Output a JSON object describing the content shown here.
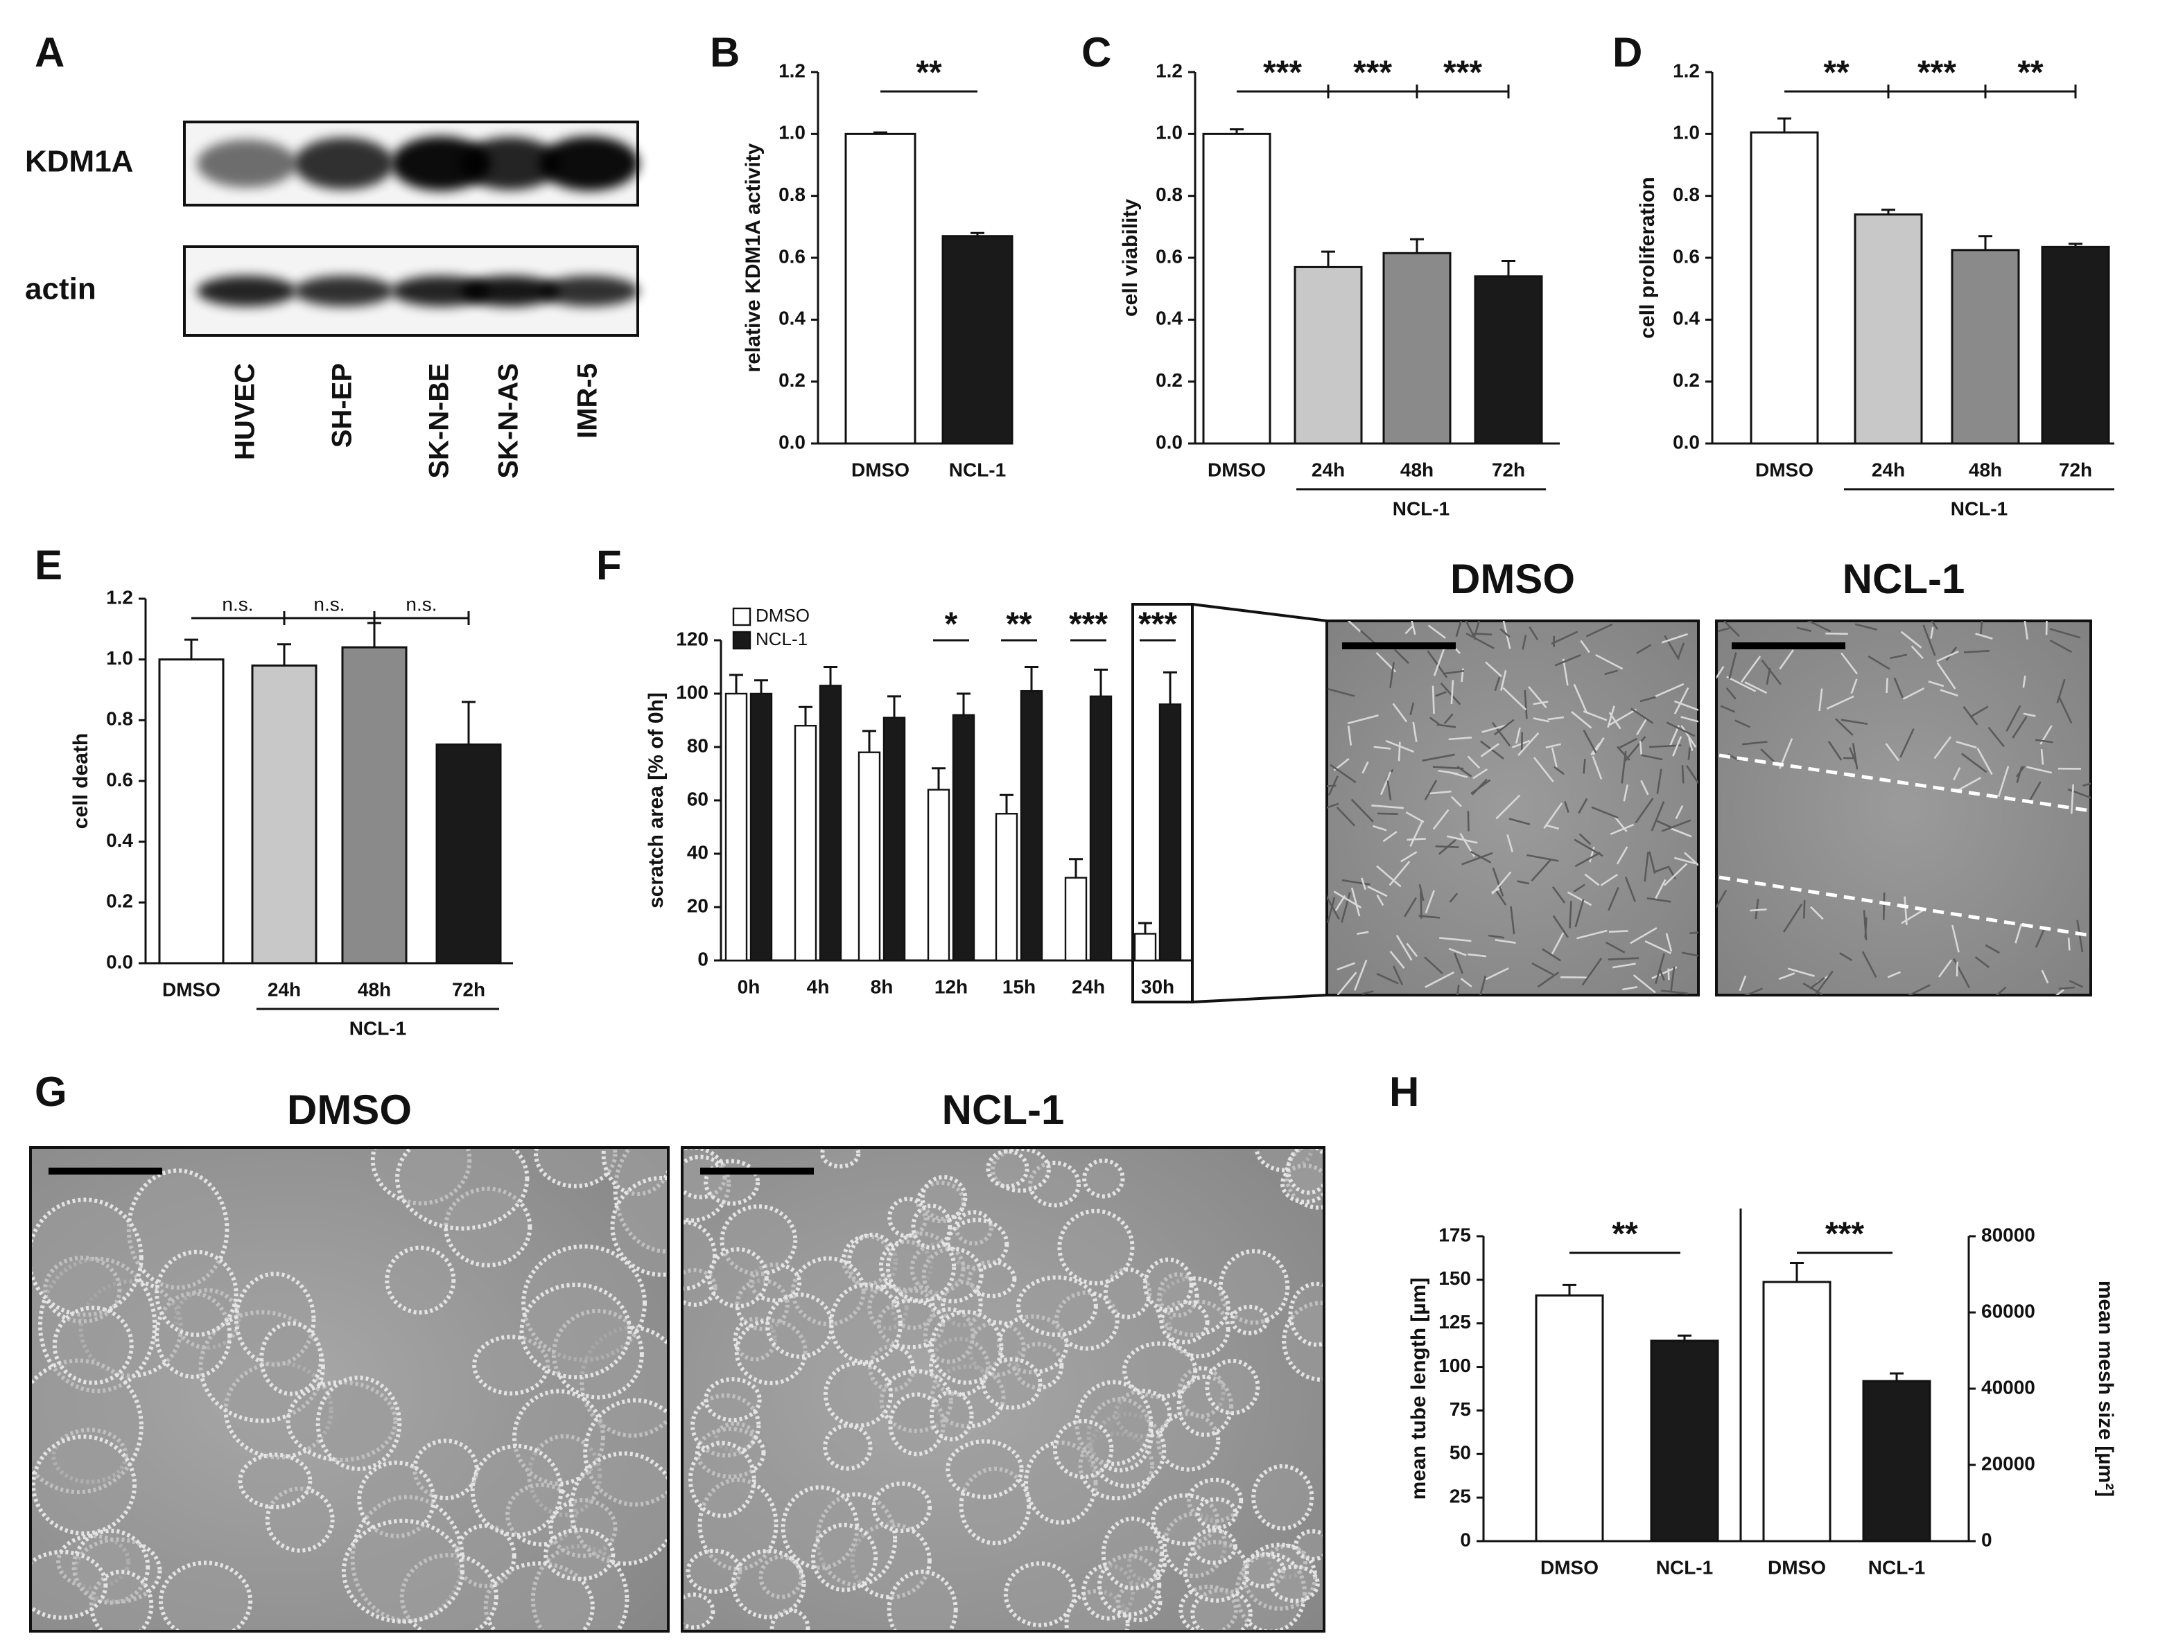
{
  "panel_labels": [
    "A",
    "B",
    "C",
    "D",
    "E",
    "F",
    "G",
    "H"
  ],
  "western_blot": {
    "rows": [
      "KDM1A",
      "actin"
    ],
    "lanes": [
      "HUVEC",
      "SH-EP",
      "SK-N-BE",
      "SK-N-AS",
      "IMR-5"
    ]
  },
  "scratch_images": {
    "titles": [
      "DMSO",
      "NCL-1"
    ]
  },
  "tube_images": {
    "titles": [
      "DMSO",
      "NCL-1"
    ]
  },
  "chart_data": [
    {
      "type": "bar",
      "y_label": "relative KDM1A activity",
      "categories": [
        "DMSO",
        "NCL-1"
      ],
      "values": [
        1.0,
        0.67
      ],
      "errors": [
        0.005,
        0.01
      ],
      "colors": [
        "#ffffff",
        "#1a1a1a"
      ],
      "ylim": [
        0,
        1.2
      ],
      "yticks": [
        {
          "value": 0,
          "label": "0.0"
        },
        0.2,
        0.4,
        0.6,
        0.8,
        {
          "value": 1,
          "label": "1.0"
        },
        1.2
      ],
      "annotations": [
        "**"
      ]
    },
    {
      "type": "bar",
      "y_label": "cell viability",
      "categories": [
        "DMSO",
        "24h",
        "48h",
        "72h"
      ],
      "values": [
        1.0,
        0.57,
        0.615,
        0.54
      ],
      "errors": [
        0.015,
        0.05,
        0.045,
        0.05
      ],
      "colors": [
        "#ffffff",
        "#c8c8c8",
        "#8a8a8a",
        "#1a1a1a"
      ],
      "group_label": "NCL-1",
      "ylim": [
        0,
        1.2
      ],
      "yticks": [
        {
          "value": 0,
          "label": "0.0"
        },
        0.2,
        0.4,
        0.6,
        0.8,
        {
          "value": 1,
          "label": "1.0"
        },
        1.2
      ],
      "annotations": [
        "***",
        "***",
        "***"
      ]
    },
    {
      "type": "bar",
      "y_label": "cell proliferation",
      "categories": [
        "DMSO",
        "24h",
        "48h",
        "72h"
      ],
      "values": [
        1.005,
        0.74,
        0.625,
        0.635
      ],
      "errors": [
        0.045,
        0.015,
        0.045,
        0.01
      ],
      "colors": [
        "#ffffff",
        "#c8c8c8",
        "#8a8a8a",
        "#1a1a1a"
      ],
      "group_label": "NCL-1",
      "ylim": [
        0,
        1.2
      ],
      "yticks": [
        {
          "value": 0,
          "label": "0.0"
        },
        0.2,
        0.4,
        0.6,
        0.8,
        {
          "value": 1,
          "label": "1.0"
        },
        1.2
      ],
      "annotations": [
        "**",
        "***",
        "**"
      ]
    },
    {
      "type": "bar",
      "y_label": "cell death",
      "categories": [
        "DMSO",
        "24h",
        "48h",
        "72h"
      ],
      "values": [
        1.0,
        0.98,
        1.04,
        0.72
      ],
      "errors": [
        0.065,
        0.07,
        0.08,
        0.14
      ],
      "colors": [
        "#ffffff",
        "#c8c8c8",
        "#8a8a8a",
        "#1a1a1a"
      ],
      "group_label": "NCL-1",
      "ylim": [
        0,
        1.2
      ],
      "yticks": [
        {
          "value": 0,
          "label": "0.0"
        },
        0.2,
        0.4,
        0.6,
        0.8,
        {
          "value": 1,
          "label": "1.0"
        },
        1.2
      ],
      "annotations": [
        "n.s.",
        "n.s.",
        "n.s."
      ]
    },
    {
      "type": "grouped_bar",
      "y_label": "scratch area [% of 0h]",
      "categories": [
        "0h",
        "4h",
        "8h",
        "12h",
        "15h",
        "24h",
        "30h"
      ],
      "series": [
        {
          "name": "DMSO",
          "color": "#ffffff",
          "values": [
            100,
            88,
            78,
            64,
            55,
            31,
            10
          ],
          "errors": [
            7,
            7,
            8,
            8,
            7,
            7,
            4
          ]
        },
        {
          "name": "NCL-1",
          "color": "#1a1a1a",
          "values": [
            100,
            103,
            91,
            92,
            101,
            99,
            96
          ],
          "errors": [
            5,
            7,
            8,
            8,
            9,
            10,
            12
          ]
        }
      ],
      "legend": "top-left",
      "ylim": [
        0,
        120
      ],
      "yticks": [
        0,
        20,
        40,
        60,
        80,
        100,
        120
      ],
      "annotations": [
        null,
        null,
        null,
        "*",
        "**",
        "***",
        "***"
      ]
    },
    {
      "type": "dual_axis_bar",
      "y_label": "mean tube length [µm]",
      "y2_label": "mean mesh size [µm²]",
      "categories": [
        "DMSO",
        "NCL-1",
        "DMSO",
        "NCL-1"
      ],
      "colors": [
        "#ffffff",
        "#1a1a1a",
        "#ffffff",
        "#1a1a1a"
      ],
      "series": [
        {
          "axis": "y",
          "values": [
            141,
            115,
            null,
            null
          ],
          "errors": [
            6,
            3,
            null,
            null
          ]
        },
        {
          "axis": "y2",
          "values": [
            null,
            null,
            68000,
            42000
          ],
          "errors": [
            null,
            null,
            5000,
            2000
          ]
        }
      ],
      "ylim": [
        0,
        175
      ],
      "yticks": [
        0,
        25,
        50,
        75,
        100,
        125,
        150,
        175
      ],
      "y2lim": [
        0,
        80000
      ],
      "y2ticks": [
        0,
        20000,
        40000,
        60000,
        80000
      ],
      "annotations": [
        "**",
        "***"
      ]
    }
  ]
}
